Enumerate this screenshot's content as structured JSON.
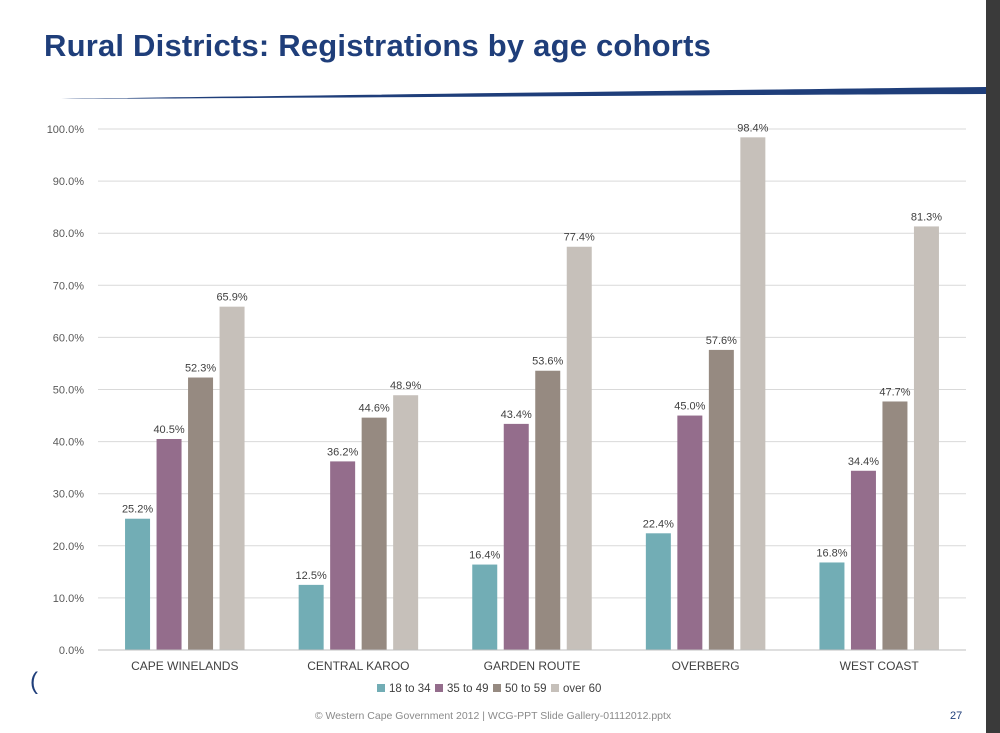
{
  "slide": {
    "title": "Rural Districts: Registrations by age cohorts",
    "footer": "© Western Cape Government 2012  |  WCG-PPT Slide Gallery-01112012.pptx",
    "page_number": "27",
    "stray_mark": "("
  },
  "colors": {
    "title": "#1f3e7a",
    "accent_line": "#1f3e7a",
    "series": [
      "#72adb5",
      "#946d8c",
      "#968a81",
      "#c6c0ba"
    ]
  },
  "chart_data": {
    "type": "bar",
    "title": "",
    "xlabel": "",
    "ylabel": "",
    "categories": [
      "CAPE WINELANDS",
      "CENTRAL KAROO",
      "GARDEN ROUTE",
      "OVERBERG",
      "WEST COAST"
    ],
    "series": [
      {
        "name": "18 to 34",
        "values": [
          25.2,
          12.5,
          16.4,
          22.4,
          16.8
        ]
      },
      {
        "name": "35 to 49",
        "values": [
          40.5,
          36.2,
          43.4,
          45.0,
          34.4
        ]
      },
      {
        "name": "50 to 59",
        "values": [
          52.3,
          44.6,
          53.6,
          57.6,
          47.7
        ]
      },
      {
        "name": "over 60",
        "values": [
          65.9,
          48.9,
          77.4,
          98.4,
          81.3
        ]
      }
    ],
    "ylim": [
      0,
      100
    ],
    "yticks": [
      0,
      10,
      20,
      30,
      40,
      50,
      60,
      70,
      80,
      90,
      100
    ],
    "ytick_labels": [
      "0.0%",
      "10.0%",
      "20.0%",
      "30.0%",
      "40.0%",
      "50.0%",
      "60.0%",
      "70.0%",
      "80.0%",
      "90.0%",
      "100.0%"
    ],
    "value_suffix": "%",
    "value_decimals": 1,
    "grid": true,
    "legend_position": "bottom"
  }
}
